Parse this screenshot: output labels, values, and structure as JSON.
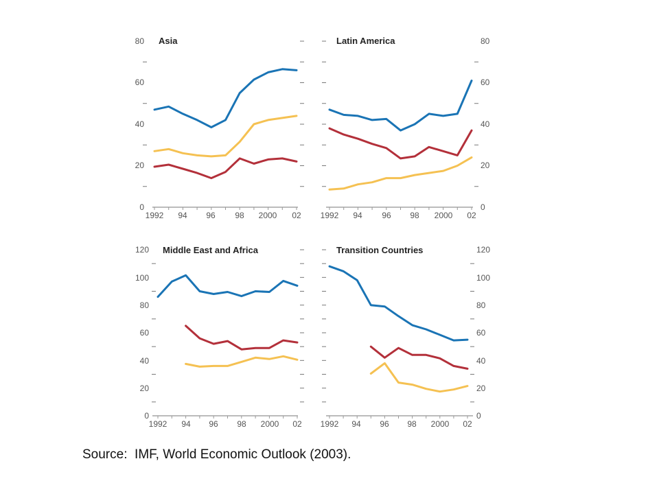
{
  "colors": {
    "blue": "#1a74b5",
    "red": "#b3303a",
    "yellow": "#f5c152",
    "axis": "#bbbbbb"
  },
  "source": "Source:  IMF, World Economic Outlook (2003).",
  "chart_data": [
    {
      "type": "line",
      "title": "Asia",
      "x": [
        1992,
        1993,
        1994,
        1995,
        1996,
        1997,
        1998,
        1999,
        2000,
        2001,
        2002
      ],
      "x_ticks": [
        "1992",
        "94",
        "96",
        "98",
        "2000",
        "02"
      ],
      "ylim": [
        0,
        80
      ],
      "y_ticks": [
        "0",
        "20",
        "40",
        "60",
        "80"
      ],
      "y_axis_side": "left",
      "series": [
        {
          "color": "blue",
          "values": [
            47,
            48.5,
            45,
            42,
            38.5,
            42,
            55,
            61.5,
            65,
            66.5,
            66
          ]
        },
        {
          "color": "yellow",
          "values": [
            27,
            28,
            26,
            25,
            24.5,
            25,
            31.5,
            40,
            42,
            43,
            44
          ]
        },
        {
          "color": "red",
          "values": [
            19.5,
            20.5,
            18.5,
            16.5,
            14,
            17,
            23.5,
            21,
            23,
            23.5,
            22
          ]
        }
      ]
    },
    {
      "type": "line",
      "title": "Latin America",
      "x": [
        1992,
        1993,
        1994,
        1995,
        1996,
        1997,
        1998,
        1999,
        2000,
        2001,
        2002
      ],
      "x_ticks": [
        "1992",
        "94",
        "96",
        "98",
        "2000",
        "02"
      ],
      "ylim": [
        0,
        80
      ],
      "y_ticks": [
        "0",
        "20",
        "40",
        "60",
        "80"
      ],
      "y_axis_side": "right",
      "series": [
        {
          "color": "blue",
          "values": [
            47,
            44.5,
            44,
            42,
            42.5,
            37,
            40,
            45,
            44,
            45,
            61
          ]
        },
        {
          "color": "red",
          "values": [
            38,
            35,
            33,
            30.5,
            28.5,
            23.5,
            24.5,
            29,
            27,
            25,
            37
          ]
        },
        {
          "color": "yellow",
          "values": [
            8.5,
            9,
            11,
            12,
            14,
            14,
            15.5,
            16.5,
            17.5,
            20,
            24
          ]
        }
      ]
    },
    {
      "type": "line",
      "title": "Middle East and Africa",
      "x": [
        1992,
        1993,
        1994,
        1995,
        1996,
        1997,
        1998,
        1999,
        2000,
        2001,
        2002
      ],
      "x_ticks": [
        "1992",
        "94",
        "96",
        "98",
        "2000",
        "02"
      ],
      "ylim": [
        0,
        120
      ],
      "y_ticks": [
        "0",
        "20",
        "40",
        "60",
        "80",
        "100",
        "120"
      ],
      "y_axis_side": "left",
      "series": [
        {
          "color": "blue",
          "values": [
            86,
            97,
            101.5,
            90,
            88,
            89.5,
            86.5,
            90,
            89.5,
            97.5,
            94
          ]
        },
        {
          "color": "red",
          "values": [
            null,
            null,
            65,
            56,
            52,
            54,
            48,
            49,
            49,
            54.5,
            53
          ]
        },
        {
          "color": "yellow",
          "values": [
            null,
            null,
            37.5,
            35.5,
            36,
            36,
            39,
            42,
            41,
            43,
            40.5
          ]
        }
      ]
    },
    {
      "type": "line",
      "title": "Transition Countries",
      "x": [
        1992,
        1993,
        1994,
        1995,
        1996,
        1997,
        1998,
        1999,
        2000,
        2001,
        2002
      ],
      "x_ticks": [
        "1992",
        "94",
        "96",
        "98",
        "2000",
        "02"
      ],
      "ylim": [
        0,
        120
      ],
      "y_ticks": [
        "0",
        "20",
        "40",
        "60",
        "80",
        "100",
        "120"
      ],
      "y_axis_side": "right",
      "series": [
        {
          "color": "blue",
          "values": [
            108,
            104.5,
            98,
            80,
            79,
            72,
            65.5,
            62.5,
            58.5,
            54.5,
            55
          ]
        },
        {
          "color": "red",
          "values": [
            null,
            null,
            null,
            50,
            42,
            49,
            44,
            44,
            41.5,
            36,
            34
          ]
        },
        {
          "color": "yellow",
          "values": [
            null,
            null,
            null,
            30.5,
            38,
            24,
            22.5,
            19.5,
            17.5,
            19,
            21.5
          ]
        }
      ]
    }
  ]
}
